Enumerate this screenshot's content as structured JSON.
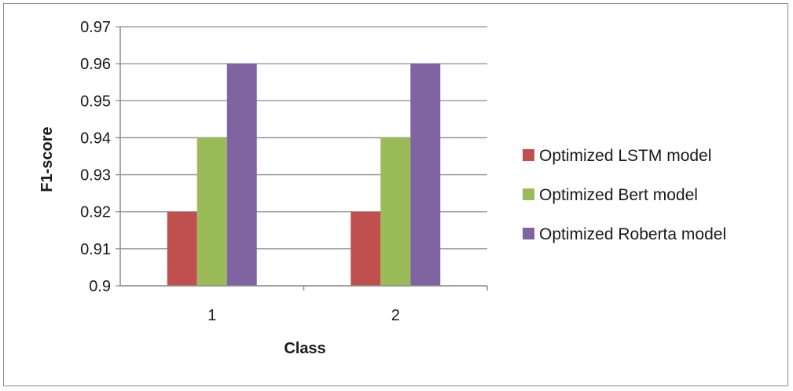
{
  "chart_data": {
    "type": "bar",
    "categories": [
      "1",
      "2"
    ],
    "series": [
      {
        "name": "Optimized LSTM model",
        "values": [
          0.92,
          0.92
        ],
        "color": "#c0504d"
      },
      {
        "name": "Optimized Bert model",
        "values": [
          0.94,
          0.94
        ],
        "color": "#9bbb59"
      },
      {
        "name": "Optimized Roberta model",
        "values": [
          0.96,
          0.96
        ],
        "color": "#8064a2"
      }
    ],
    "xlabel": "Class",
    "ylabel": "F1-score",
    "ylim": [
      0.9,
      0.97
    ],
    "yticks": [
      "0.9",
      "0.91",
      "0.92",
      "0.93",
      "0.94",
      "0.95",
      "0.96",
      "0.97"
    ],
    "grid": true,
    "legend_position": "right"
  }
}
